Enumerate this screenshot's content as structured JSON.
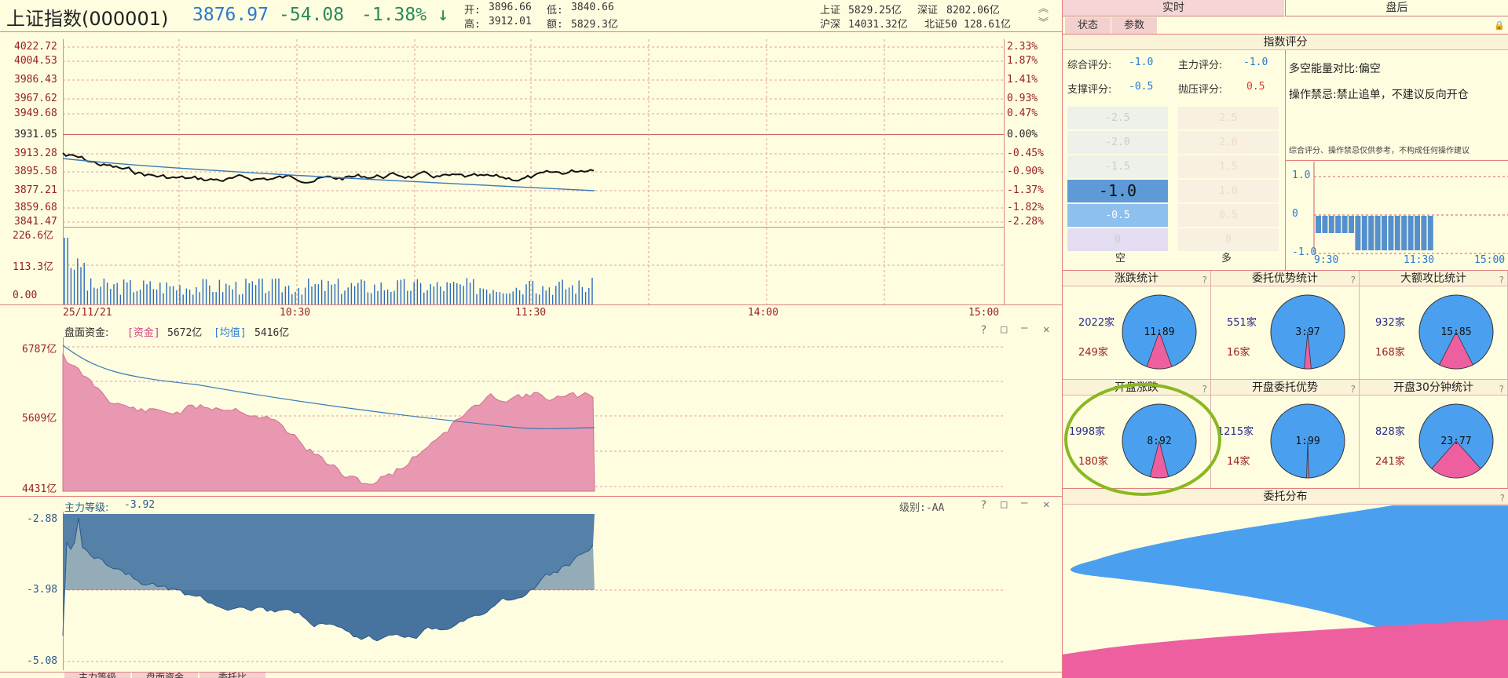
{
  "header": {
    "title": "上证指数(000001)",
    "price": "3876.97",
    "change": "-54.08",
    "pct": "-1.38%",
    "open_l": "开:",
    "open": "3896.66",
    "low_l": "低:",
    "low": "3840.66",
    "high_l": "高:",
    "high": "3912.01",
    "amt_l": "额:",
    "amt": "5829.3亿",
    "sh_l": "上证",
    "sh": "5829.25亿",
    "sz_l": "深证",
    "sz": "8202.06亿",
    "hs_l": "沪深",
    "hs": "14031.32亿",
    "bb_l": "北证50",
    "bb": "128.61亿"
  },
  "main_chart": {
    "y_left": [
      "4022.72",
      "4004.53",
      "3986.43",
      "3967.62",
      "3949.68",
      "3931.05",
      "3913.28",
      "3895.58",
      "3877.21",
      "3859.68",
      "3841.47"
    ],
    "y_right": [
      "2.33%",
      "1.87%",
      "1.41%",
      "0.93%",
      "0.47%",
      "0.00%",
      "-0.45%",
      "-0.90%",
      "-1.37%",
      "-1.82%",
      "-2.28%"
    ],
    "vol_axis": [
      "226.6亿",
      "113.3亿",
      "0.00"
    ],
    "x_labels": [
      "25/11/21",
      "10:30",
      "11:30",
      "14:00",
      "15:00"
    ]
  },
  "panel2": {
    "title": "盘面资金:",
    "tag1": "[资金]",
    "v1": "5672亿",
    "tag2": "[均值]",
    "v2": "5416亿",
    "y": [
      "6787亿",
      "5609亿",
      "4431亿"
    ]
  },
  "panel3": {
    "title": "主力等级:",
    "value": "-3.92",
    "grade": "级别:-AA",
    "y": [
      "-2.88",
      "-3.98",
      "-5.08"
    ]
  },
  "bottom_tabs": [
    "主力等级",
    "盘面资金",
    "委托比"
  ],
  "right": {
    "tab_rt": "实时",
    "tab_post": "盘后",
    "sub_state": "状态",
    "sub_param": "参数",
    "index_score_title": "指数评分",
    "s1_l": "综合评分:",
    "s1": "-1.0",
    "s2_l": "主力评分:",
    "s2": "-1.0",
    "s3_l": "支撑评分:",
    "s3": "-0.5",
    "s4_l": "抛压评分:",
    "s4": "0.5",
    "energy": "多空能量对比:偏空",
    "ban": "操作禁忌:禁止追单，不建议反向开仓",
    "note": "综合评分、操作禁忌仅供参考，不构成任何操作建议",
    "bar_left": [
      "-2.5",
      "-2.0",
      "-1.5",
      "-1.0",
      "-0.5",
      "0"
    ],
    "bar_right": [
      "2.5",
      "2.0",
      "1.5",
      "1.0",
      "0.5",
      "0"
    ],
    "bar_empty": "空",
    "bar_more": "多",
    "mini": {
      "y": [
        "1.0",
        "0",
        "-1.0"
      ],
      "x": [
        "9:30",
        "11:30",
        "15:00"
      ]
    },
    "pies": [
      {
        "title": "涨跌统计",
        "a": "2022家",
        "b": "249家",
        "ratio": "11:89",
        "share": 0.11
      },
      {
        "title": "委托优势统计",
        "a": "551家",
        "b": "16家",
        "ratio": "3:97",
        "share": 0.03
      },
      {
        "title": "大额攻比统计",
        "a": "932家",
        "b": "168家",
        "ratio": "15:85",
        "share": 0.15
      },
      {
        "title": "开盘涨跌",
        "a": "1998家",
        "b": "180家",
        "ratio": "8:92",
        "share": 0.08
      },
      {
        "title": "开盘委托优势",
        "a": "1215家",
        "b": "14家",
        "ratio": "1:99",
        "share": 0.01
      },
      {
        "title": "开盘30分钟统计",
        "a": "828家",
        "b": "241家",
        "ratio": "23:77",
        "share": 0.23
      }
    ],
    "dist_title": "委托分布"
  },
  "colors": {
    "up": "#e8507a",
    "down": "#4aa0ef",
    "line": "#3a7ab8",
    "bg": "#fefde0",
    "grid": "#e0a0a0"
  }
}
